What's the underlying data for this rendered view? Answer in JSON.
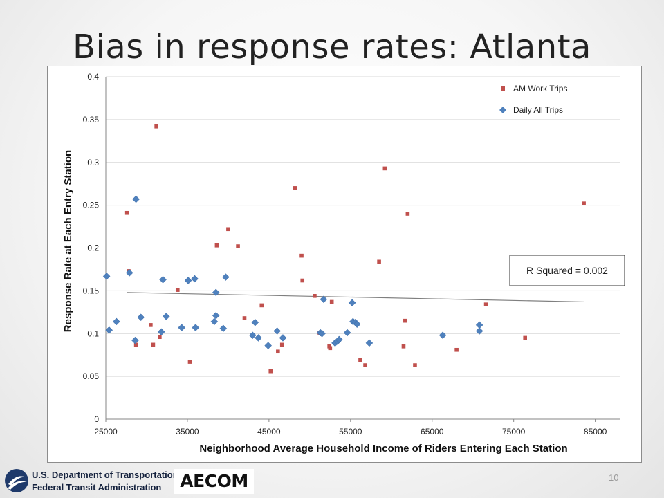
{
  "slide": {
    "title": "Bias in response rates: Atlanta",
    "page_number": "10"
  },
  "footer": {
    "dot_line1": "U.S. Department of Transportation",
    "dot_line2": "Federal Transit Administration",
    "aecom": "AECOM"
  },
  "annotation": {
    "r_squared": "R Squared = 0.002"
  },
  "colors": {
    "am_work": "#c0504d",
    "daily_all": "#4f81bd",
    "trend": "#7f7f7f",
    "grid": "#d9d9d9"
  },
  "chart_data": {
    "type": "scatter",
    "title": "",
    "xlabel": "Neighborhood Average Household Income of Riders Entering Each Station",
    "ylabel": "Response Rate at Each Entry Station",
    "xlim": [
      25000,
      88000
    ],
    "ylim": [
      0,
      0.4
    ],
    "x_ticks": [
      25000,
      35000,
      45000,
      55000,
      65000,
      75000,
      85000
    ],
    "y_ticks": [
      0,
      0.05,
      0.1,
      0.15,
      0.2,
      0.25,
      0.3,
      0.35,
      0.4
    ],
    "x_tick_labels": [
      "25000",
      "35000",
      "45000",
      "55000",
      "65000",
      "75000",
      "85000"
    ],
    "y_tick_labels": [
      "0",
      "0.05",
      "0.1",
      "0.15",
      "0.2",
      "0.25",
      "0.3",
      "0.35",
      "0.4"
    ],
    "grid": true,
    "legend_position": "top-right",
    "series": [
      {
        "name": "AM Work Trips",
        "marker": "square",
        "points": [
          [
            27600,
            0.241
          ],
          [
            27800,
            0.173
          ],
          [
            28700,
            0.087
          ],
          [
            30500,
            0.11
          ],
          [
            30800,
            0.087
          ],
          [
            31200,
            0.342
          ],
          [
            31600,
            0.096
          ],
          [
            33800,
            0.151
          ],
          [
            35300,
            0.067
          ],
          [
            38600,
            0.203
          ],
          [
            40000,
            0.222
          ],
          [
            41200,
            0.202
          ],
          [
            42000,
            0.118
          ],
          [
            44100,
            0.133
          ],
          [
            45200,
            0.056
          ],
          [
            46100,
            0.079
          ],
          [
            46600,
            0.087
          ],
          [
            48200,
            0.27
          ],
          [
            49000,
            0.191
          ],
          [
            49100,
            0.162
          ],
          [
            50600,
            0.144
          ],
          [
            51200,
            0.101
          ],
          [
            52400,
            0.085
          ],
          [
            52500,
            0.083
          ],
          [
            52700,
            0.137
          ],
          [
            56200,
            0.069
          ],
          [
            56800,
            0.063
          ],
          [
            58500,
            0.184
          ],
          [
            59200,
            0.293
          ],
          [
            61500,
            0.085
          ],
          [
            61700,
            0.115
          ],
          [
            62000,
            0.24
          ],
          [
            62900,
            0.063
          ],
          [
            68000,
            0.081
          ],
          [
            71600,
            0.134
          ],
          [
            76400,
            0.095
          ],
          [
            83600,
            0.252
          ]
        ]
      },
      {
        "name": "Daily All Trips",
        "marker": "diamond",
        "points": [
          [
            25100,
            0.167
          ],
          [
            25400,
            0.104
          ],
          [
            26300,
            0.114
          ],
          [
            27900,
            0.171
          ],
          [
            28600,
            0.092
          ],
          [
            28700,
            0.257
          ],
          [
            29300,
            0.119
          ],
          [
            31800,
            0.102
          ],
          [
            32000,
            0.163
          ],
          [
            32400,
            0.12
          ],
          [
            34300,
            0.107
          ],
          [
            35100,
            0.162
          ],
          [
            35900,
            0.164
          ],
          [
            36000,
            0.107
          ],
          [
            38300,
            0.114
          ],
          [
            38500,
            0.121
          ],
          [
            38500,
            0.148
          ],
          [
            39400,
            0.106
          ],
          [
            39700,
            0.166
          ],
          [
            43000,
            0.098
          ],
          [
            43300,
            0.113
          ],
          [
            43700,
            0.095
          ],
          [
            44900,
            0.086
          ],
          [
            46000,
            0.103
          ],
          [
            46700,
            0.095
          ],
          [
            51300,
            0.101
          ],
          [
            51500,
            0.1
          ],
          [
            51700,
            0.14
          ],
          [
            53100,
            0.089
          ],
          [
            53400,
            0.091
          ],
          [
            53600,
            0.093
          ],
          [
            54600,
            0.101
          ],
          [
            55200,
            0.136
          ],
          [
            55300,
            0.114
          ],
          [
            55600,
            0.113
          ],
          [
            55800,
            0.111
          ],
          [
            57300,
            0.089
          ],
          [
            66300,
            0.098
          ],
          [
            70800,
            0.11
          ],
          [
            70800,
            0.103
          ]
        ]
      }
    ],
    "trendline": {
      "x": [
        27600,
        83600
      ],
      "y": [
        0.148,
        0.137
      ]
    }
  }
}
